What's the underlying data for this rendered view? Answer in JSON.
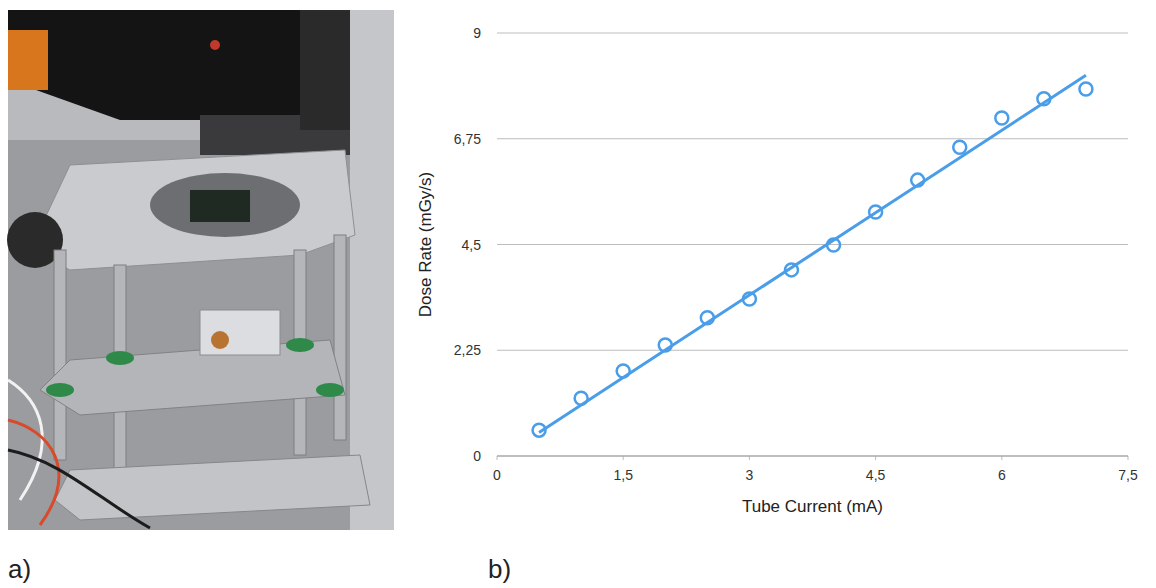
{
  "photo": {
    "panel_label": "a)"
  },
  "chart_data": {
    "type": "scatter",
    "panel_label": "b)",
    "x_label": "Tube Current (mA)",
    "y_label": "Dose Rate (mGy/s)",
    "xlim": [
      0,
      7.5
    ],
    "ylim": [
      0,
      9
    ],
    "xticks": [
      0,
      {
        "value": 1.5,
        "label": "1,5"
      },
      3,
      {
        "value": 4.5,
        "label": "4,5"
      },
      6,
      {
        "value": 7.5,
        "label": "7,5"
      }
    ],
    "yticks": [
      0,
      {
        "value": 2.25,
        "label": "2,25"
      },
      {
        "value": 4.5,
        "label": "4,5"
      },
      {
        "value": 6.75,
        "label": "6,75"
      },
      9
    ],
    "grid": true,
    "series": [
      {
        "type": "scatter",
        "marker": "circle",
        "color": "#4a9de8",
        "x": [
          0.5,
          1,
          1.5,
          2,
          2.5,
          3,
          3.5,
          4,
          4.5,
          5,
          5.5,
          6,
          6.5,
          7
        ],
        "values": [
          0.55,
          1.23,
          1.81,
          2.36,
          2.94,
          3.34,
          3.96,
          4.49,
          5.19,
          5.87,
          6.57,
          7.19,
          7.6,
          7.81
        ]
      },
      {
        "type": "line",
        "line_style": "solid",
        "color": "#4a9de8",
        "x": [
          0.5,
          7
        ],
        "values": [
          0.5,
          8.1
        ]
      }
    ]
  }
}
